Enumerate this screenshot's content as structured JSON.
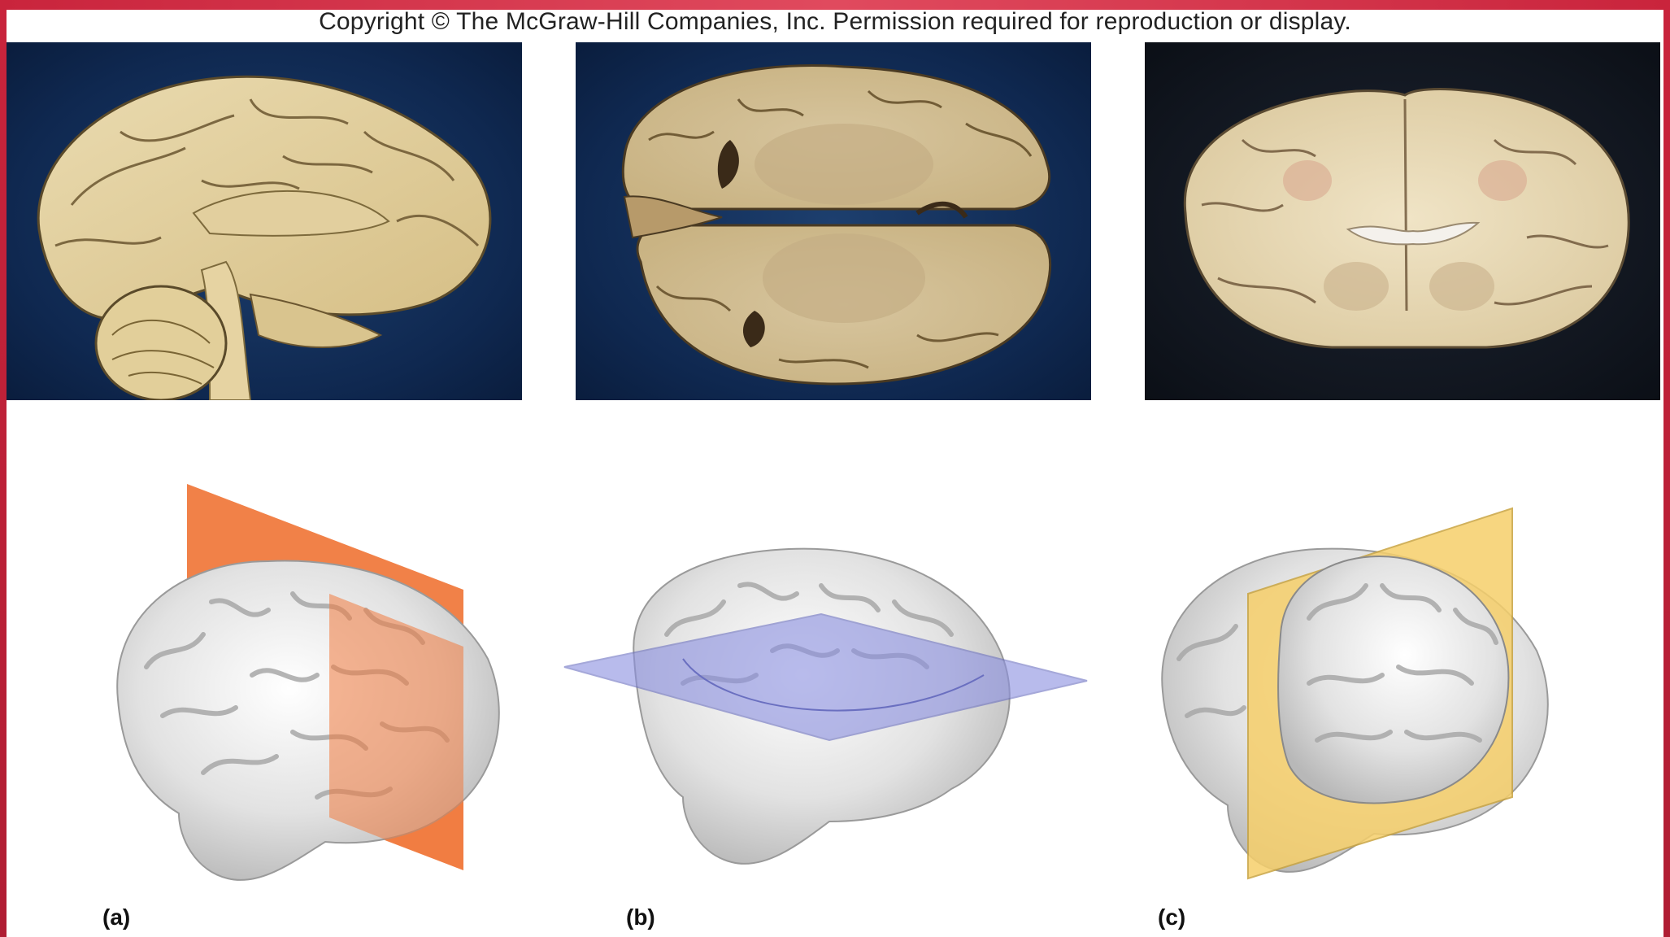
{
  "header": {
    "copyright": "Copyright © The McGraw-Hill Companies, Inc. Permission required for reproduction or display."
  },
  "panels": [
    {
      "label": "(a)",
      "plane": "sagittal",
      "plane_color": "#f07a3e"
    },
    {
      "label": "(b)",
      "plane": "transverse",
      "plane_color": "#8a8fe0"
    },
    {
      "label": "(c)",
      "plane": "frontal",
      "plane_color": "#f6cf6a"
    }
  ],
  "colors": {
    "frame": "#c9243c",
    "photo_background_a": "#12305e",
    "photo_background_c": "#141a24",
    "tissue": "#e8d7a8"
  }
}
